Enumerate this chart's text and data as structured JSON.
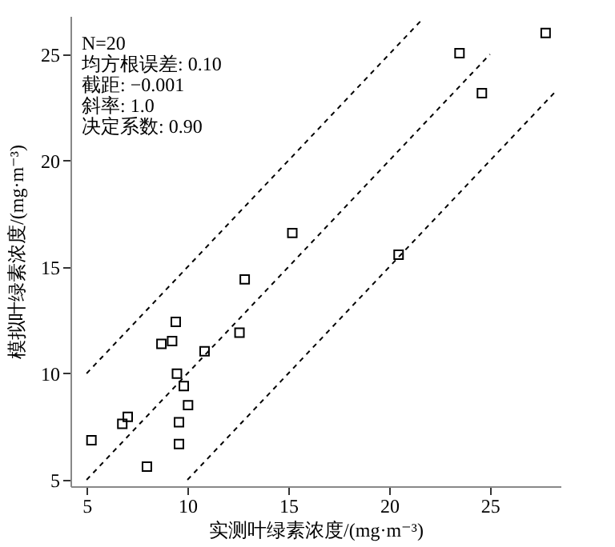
{
  "chart_data": {
    "type": "scatter",
    "xlabel": "实测叶绿素浓度/(mg·m⁻³)",
    "ylabel": "模拟叶绿素浓度/(mg·m⁻³)",
    "xlim": [
      4.2,
      28.5
    ],
    "ylim": [
      4.7,
      26.8
    ],
    "xticks": [
      5,
      10,
      15,
      20,
      25
    ],
    "yticks": [
      5,
      10,
      15,
      20,
      25
    ],
    "grid": false,
    "annotations": [
      "N=20",
      "均方根误差: 0.10",
      "截距: −0.001",
      "斜率: 1.0",
      "决定系数: 0.90"
    ],
    "series": [
      {
        "type": "scatter",
        "color": "#000000",
        "marker": "square",
        "x": [
          5.24,
          6.77,
          7.04,
          7.99,
          8.71,
          9.24,
          9.42,
          9.48,
          9.82,
          9.58,
          9.58,
          10.03,
          10.85,
          12.58,
          12.84,
          20.47,
          15.2,
          23.49,
          24.6,
          27.76
        ],
        "values": [
          6.86,
          7.63,
          7.96,
          5.62,
          11.39,
          11.52,
          12.42,
          9.99,
          9.41,
          7.71,
          6.68,
          8.51,
          11.04,
          11.92,
          14.42,
          15.58,
          16.6,
          25.05,
          23.17,
          26.0
        ]
      },
      {
        "type": "line",
        "color": "#000000",
        "line_style": "dashed",
        "x": [
          5,
          21.7
        ],
        "values": [
          10,
          26.7
        ]
      },
      {
        "type": "line",
        "color": "#000000",
        "line_style": "dashed",
        "x": [
          5,
          25
        ],
        "values": [
          5,
          25
        ]
      },
      {
        "type": "line",
        "color": "#000000",
        "line_style": "dashed",
        "x": [
          10,
          28.2
        ],
        "values": [
          5,
          23.2
        ]
      }
    ]
  }
}
